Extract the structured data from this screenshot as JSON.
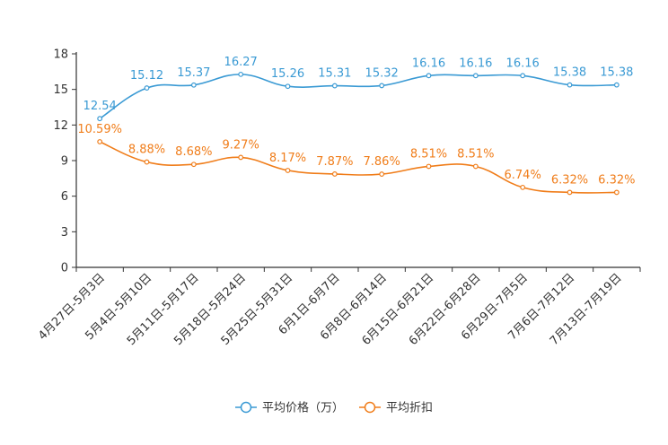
{
  "chart_data": {
    "type": "line",
    "categories": [
      "4月27日-5月3日",
      "5月4日-5月10日",
      "5月11日-5月17日",
      "5月18日-5月24日",
      "5月25日-5月31日",
      "6月1日-6月7日",
      "6月8日-6月14日",
      "6月15日-6月21日",
      "6月22日-6月28日",
      "6月29日-7月5日",
      "7月6日-7月12日",
      "7月13日-7月19日"
    ],
    "y_ticks": [
      "0",
      "3",
      "6",
      "9",
      "12",
      "15",
      "18"
    ],
    "ylim": [
      0,
      18
    ],
    "series": [
      {
        "name": "平均价格（万）",
        "color": "#3a9ad4",
        "values": [
          12.54,
          15.12,
          15.37,
          16.27,
          15.26,
          15.31,
          15.32,
          16.16,
          16.16,
          16.16,
          15.38,
          15.38
        ],
        "labels": [
          "12.54",
          "15.12",
          "15.37",
          "16.27",
          "15.26",
          "15.31",
          "15.32",
          "16.16",
          "16.16",
          "16.16",
          "15.38",
          "15.38"
        ]
      },
      {
        "name": "平均折扣",
        "color": "#f07d1a",
        "values": [
          10.59,
          8.88,
          8.68,
          9.27,
          8.17,
          7.87,
          7.86,
          8.51,
          8.51,
          6.74,
          6.32,
          6.32
        ],
        "labels": [
          "10.59%",
          "8.88%",
          "8.68%",
          "9.27%",
          "8.17%",
          "7.87%",
          "7.86%",
          "8.51%",
          "8.51%",
          "6.74%",
          "6.32%",
          "6.32%"
        ]
      }
    ],
    "legend_position": "bottom-center",
    "grid": false
  }
}
